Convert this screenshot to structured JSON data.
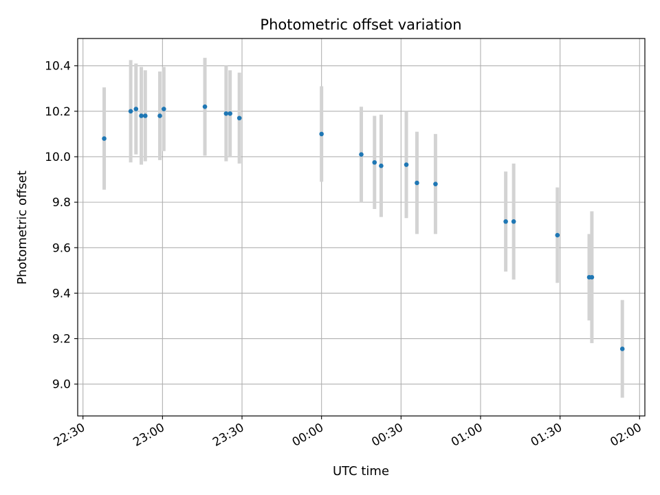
{
  "chart_data": {
    "type": "scatter",
    "title": "Photometric offset variation",
    "xlabel": "UTC time",
    "ylabel": "Photometric offset",
    "grid": true,
    "xlim": [
      "22:28",
      "02:02"
    ],
    "ylim": [
      8.86,
      10.52
    ],
    "x_ticks": [
      {
        "time": "22:30",
        "label": "22:30"
      },
      {
        "time": "23:00",
        "label": "23:00"
      },
      {
        "time": "23:30",
        "label": "23:30"
      },
      {
        "time": "00:00",
        "label": "00:00"
      },
      {
        "time": "00:30",
        "label": "00:30"
      },
      {
        "time": "01:00",
        "label": "01:00"
      },
      {
        "time": "01:30",
        "label": "01:30"
      },
      {
        "time": "02:00",
        "label": "02:00"
      }
    ],
    "y_ticks": [
      9.0,
      9.2,
      9.4,
      9.6,
      9.8,
      10.0,
      10.2,
      10.4
    ],
    "y_tick_labels": [
      "9.0",
      "9.2",
      "9.4",
      "9.6",
      "9.8",
      "10.0",
      "10.2",
      "10.4"
    ],
    "marker_color": "#1f77b4",
    "errorbar_color": "#d3d3d3",
    "points": [
      {
        "time": "22:38",
        "y": 10.08,
        "yerr": 0.225
      },
      {
        "time": "22:48",
        "y": 10.2,
        "yerr": 0.225
      },
      {
        "time": "22:50",
        "y": 10.21,
        "yerr": 0.2
      },
      {
        "time": "22:52",
        "y": 10.18,
        "yerr": 0.215
      },
      {
        "time": "22:53.5",
        "y": 10.18,
        "yerr": 0.2
      },
      {
        "time": "22:59",
        "y": 10.18,
        "yerr": 0.195
      },
      {
        "time": "23:00.5",
        "y": 10.21,
        "yerr": 0.185
      },
      {
        "time": "23:16",
        "y": 10.22,
        "yerr": 0.215
      },
      {
        "time": "23:24",
        "y": 10.19,
        "yerr": 0.21
      },
      {
        "time": "23:25.5",
        "y": 10.19,
        "yerr": 0.19
      },
      {
        "time": "23:29",
        "y": 10.17,
        "yerr": 0.2
      },
      {
        "time": "00:00",
        "y": 10.1,
        "yerr": 0.21
      },
      {
        "time": "00:15",
        "y": 10.01,
        "yerr": 0.21
      },
      {
        "time": "00:20",
        "y": 9.975,
        "yerr": 0.205
      },
      {
        "time": "00:22.5",
        "y": 9.96,
        "yerr": 0.225
      },
      {
        "time": "00:32",
        "y": 9.965,
        "yerr": 0.235
      },
      {
        "time": "00:36",
        "y": 9.885,
        "yerr": 0.225
      },
      {
        "time": "00:43",
        "y": 9.88,
        "yerr": 0.22
      },
      {
        "time": "01:09.5",
        "y": 9.715,
        "yerr": 0.22
      },
      {
        "time": "01:12.5",
        "y": 9.715,
        "yerr": 0.255
      },
      {
        "time": "01:29",
        "y": 9.655,
        "yerr": 0.21
      },
      {
        "time": "01:41",
        "y": 9.47,
        "yerr": 0.19
      },
      {
        "time": "01:42",
        "y": 9.47,
        "yerr": 0.29
      },
      {
        "time": "01:53.5",
        "y": 9.155,
        "yerr": 0.215
      }
    ]
  }
}
